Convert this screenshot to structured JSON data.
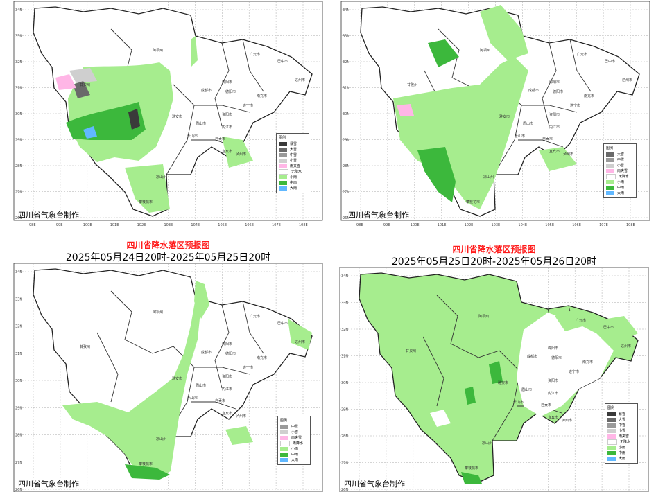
{
  "panels": [
    {
      "id": "p1",
      "title": "",
      "subtitle": "",
      "credit": "四川省气象台制作",
      "legend_title": "图例",
      "legend": [
        {
          "label": "暴雪",
          "color": "#3a3a3a"
        },
        {
          "label": "大雪",
          "color": "#6a6a6a"
        },
        {
          "label": "中雪",
          "color": "#9a9a9a"
        },
        {
          "label": "小雪",
          "color": "#cfcfcf"
        },
        {
          "label": "雨夹雪",
          "color": "#ffb6e6"
        },
        {
          "label": "无降水",
          "color": "#ffffff"
        },
        {
          "label": "小雨",
          "color": "#a6ed8e"
        },
        {
          "label": "中雨",
          "color": "#3cb83c"
        },
        {
          "label": "大雨",
          "color": "#61b8ff"
        }
      ]
    },
    {
      "id": "p2",
      "title": "",
      "subtitle": "",
      "credit": "四川省气象台制作",
      "legend_title": "图例",
      "legend": [
        {
          "label": "大雪",
          "color": "#6a6a6a"
        },
        {
          "label": "中雪",
          "color": "#9a9a9a"
        },
        {
          "label": "小雪",
          "color": "#cfcfcf"
        },
        {
          "label": "雨夹雪",
          "color": "#ffb6e6"
        },
        {
          "label": "无降水",
          "color": "#ffffff"
        },
        {
          "label": "小雨",
          "color": "#a6ed8e"
        },
        {
          "label": "中雨",
          "color": "#3cb83c"
        },
        {
          "label": "大雨",
          "color": "#61b8ff"
        }
      ]
    },
    {
      "id": "p3",
      "title": "四川省降水落区预报图",
      "subtitle": "2025年05月24日20时-2025年05月25日20时",
      "credit": "四川省气象台制作",
      "legend_title": "图例",
      "legend": [
        {
          "label": "中雪",
          "color": "#9a9a9a"
        },
        {
          "label": "小雪",
          "color": "#cfcfcf"
        },
        {
          "label": "雨夹雪",
          "color": "#ffb6e6"
        },
        {
          "label": "无降水",
          "color": "#ffffff"
        },
        {
          "label": "小雨",
          "color": "#a6ed8e"
        },
        {
          "label": "中雨",
          "color": "#3cb83c"
        },
        {
          "label": "大雨",
          "color": "#61b8ff"
        }
      ]
    },
    {
      "id": "p4",
      "title": "四川省降水落区预报图",
      "subtitle": "2025年05月25日20时-2025年05月26日20时",
      "credit": "四川省气象台制作",
      "legend_title": "图例",
      "legend": [
        {
          "label": "暴雪",
          "color": "#3a3a3a"
        },
        {
          "label": "大雪",
          "color": "#6a6a6a"
        },
        {
          "label": "中雪",
          "color": "#9a9a9a"
        },
        {
          "label": "小雪",
          "color": "#cfcfcf"
        },
        {
          "label": "雨夹雪",
          "color": "#ffb6e6"
        },
        {
          "label": "无降水",
          "color": "#ffffff"
        },
        {
          "label": "小雨",
          "color": "#a6ed8e"
        },
        {
          "label": "中雨",
          "color": "#3cb83c"
        },
        {
          "label": "大雨",
          "color": "#61b8ff"
        }
      ]
    }
  ],
  "lat_ticks": [
    "34N",
    "33N",
    "32N",
    "31N",
    "30N",
    "29N",
    "28N",
    "27N",
    "26N"
  ],
  "lon_ticks": [
    "98E",
    "99E",
    "100E",
    "101E",
    "102E",
    "103E",
    "104E",
    "105E",
    "106E",
    "107E",
    "108E"
  ],
  "cities": [
    {
      "name": "阿坝州"
    },
    {
      "name": "甘孜州"
    },
    {
      "name": "绵阳市"
    },
    {
      "name": "广元市"
    },
    {
      "name": "巴中市"
    },
    {
      "name": "达州市"
    },
    {
      "name": "南充市"
    },
    {
      "name": "德阳市"
    },
    {
      "name": "成都市"
    },
    {
      "name": "遂宁市"
    },
    {
      "name": "资阳市"
    },
    {
      "name": "雅安市"
    },
    {
      "name": "眉山市"
    },
    {
      "name": "内江市"
    },
    {
      "name": "乐山市"
    },
    {
      "name": "自贡市"
    },
    {
      "name": "宜宾市"
    },
    {
      "name": "泸州市"
    },
    {
      "name": "凉山州"
    },
    {
      "name": "攀枝花市"
    }
  ]
}
